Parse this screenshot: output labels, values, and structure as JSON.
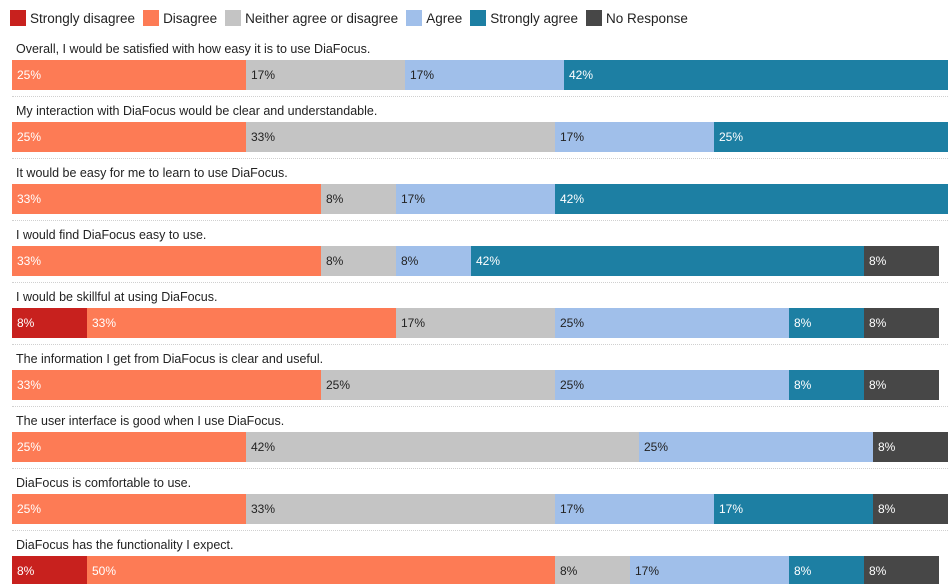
{
  "chart_data": {
    "type": "bar",
    "orientation": "horizontal",
    "stacked": true,
    "xlim": [
      0,
      100
    ],
    "grid": false,
    "legend_position": "top-left",
    "categories": [
      "Overall, I would be satisfied with how easy it is to use DiaFocus.",
      "My interaction with DiaFocus would be clear and understandable.",
      "It would be easy for me to learn to use DiaFocus.",
      "I would find DiaFocus easy to use.",
      "I would be skillful at using DiaFocus.",
      "The information I get from DiaFocus is clear and useful.",
      "The user interface is good when I use DiaFocus.",
      "DiaFocus is comfortable to use.",
      "DiaFocus has the functionality I expect."
    ],
    "series": [
      {
        "name": "Strongly disagree",
        "color": "#c8211e",
        "text_color": "#ffffff",
        "values": [
          0,
          0,
          0,
          0,
          8,
          0,
          0,
          0,
          8
        ],
        "labels": [
          "",
          "",
          "",
          "",
          "8%",
          "",
          "",
          "",
          "8%"
        ]
      },
      {
        "name": "Disagree",
        "color": "#fd7b55",
        "text_color": "#ffffff",
        "values": [
          25,
          25,
          33,
          33,
          33,
          33,
          25,
          25,
          50
        ],
        "labels": [
          "25%",
          "25%",
          "33%",
          "33%",
          "33%",
          "33%",
          "25%",
          "25%",
          "50%"
        ]
      },
      {
        "name": "Neither agree or disagree",
        "color": "#c4c4c4",
        "text_color": "#222222",
        "values": [
          17,
          33,
          8,
          8,
          17,
          25,
          42,
          33,
          8
        ],
        "labels": [
          "17%",
          "33%",
          "8%",
          "8%",
          "17%",
          "25%",
          "42%",
          "33%",
          "8%"
        ]
      },
      {
        "name": "Agree",
        "color": "#a0bfea",
        "text_color": "#222222",
        "values": [
          17,
          17,
          17,
          8,
          25,
          25,
          25,
          17,
          17
        ],
        "labels": [
          "17%",
          "17%",
          "17%",
          "8%",
          "25%",
          "25%",
          "25%",
          "17%",
          "17%"
        ]
      },
      {
        "name": "Strongly agree",
        "color": "#1d7fa3",
        "text_color": "#ffffff",
        "values": [
          42,
          25,
          42,
          42,
          8,
          8,
          0,
          17,
          8
        ],
        "labels": [
          "42%",
          "25%",
          "42%",
          "42%",
          "8%",
          "8%",
          "",
          "17%",
          "8%"
        ]
      },
      {
        "name": "No Response",
        "color": "#474747",
        "text_color": "#ffffff",
        "values": [
          0,
          0,
          0,
          8,
          8,
          8,
          8,
          8,
          8
        ],
        "labels": [
          "",
          "",
          "",
          "8%",
          "8%",
          "8%",
          "8%",
          "8%",
          "8%"
        ]
      }
    ]
  }
}
